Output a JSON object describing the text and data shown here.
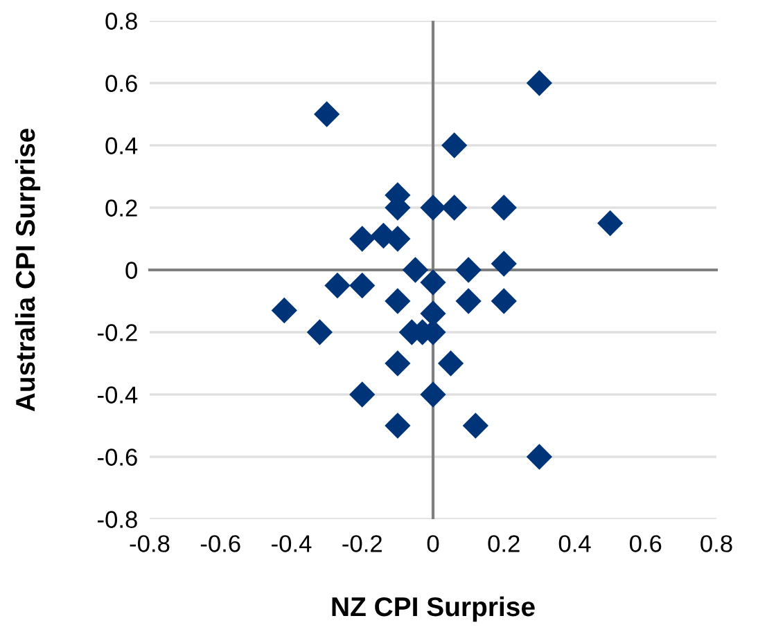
{
  "chart_data": {
    "type": "scatter",
    "xlabel": "NZ CPI Surprise",
    "ylabel": "Australia CPI Surprise",
    "x": [
      -0.3,
      0.3,
      0.06,
      -0.1,
      -0.1,
      0,
      0.06,
      0.2,
      0.5,
      -0.2,
      -0.14,
      -0.1,
      -0.05,
      0.1,
      0.2,
      0,
      -0.27,
      -0.2,
      -0.1,
      0,
      0.1,
      0.2,
      -0.42,
      -0.32,
      -0.06,
      -0.03,
      0,
      -0.1,
      0.05,
      -0.2,
      0,
      -0.1,
      0.12,
      0.3
    ],
    "values": [
      0.5,
      0.6,
      0.4,
      0.24,
      0.2,
      0.2,
      0.2,
      0.2,
      0.15,
      0.1,
      0.11,
      0.1,
      0,
      0,
      0.02,
      -0.04,
      -0.05,
      -0.05,
      -0.1,
      -0.14,
      -0.1,
      -0.1,
      -0.13,
      -0.2,
      -0.2,
      -0.2,
      -0.2,
      -0.3,
      -0.3,
      -0.4,
      -0.4,
      -0.5,
      -0.5,
      -0.6
    ],
    "color": "#003478",
    "marker": "diamond",
    "grid": "y",
    "ref_lines": [
      {
        "axis": "x",
        "value": 0,
        "color": "#808080"
      }
    ],
    "xlim": [
      -0.8,
      0.8
    ],
    "ylim": [
      -0.8,
      0.8
    ],
    "xticks": [
      -0.8,
      -0.6,
      -0.4,
      -0.2,
      0,
      0.2,
      0.4,
      0.6,
      0.8
    ],
    "yticks": [
      -0.8,
      -0.6,
      -0.4,
      -0.2,
      0,
      0.2,
      0.4,
      0.6,
      0.8
    ]
  }
}
